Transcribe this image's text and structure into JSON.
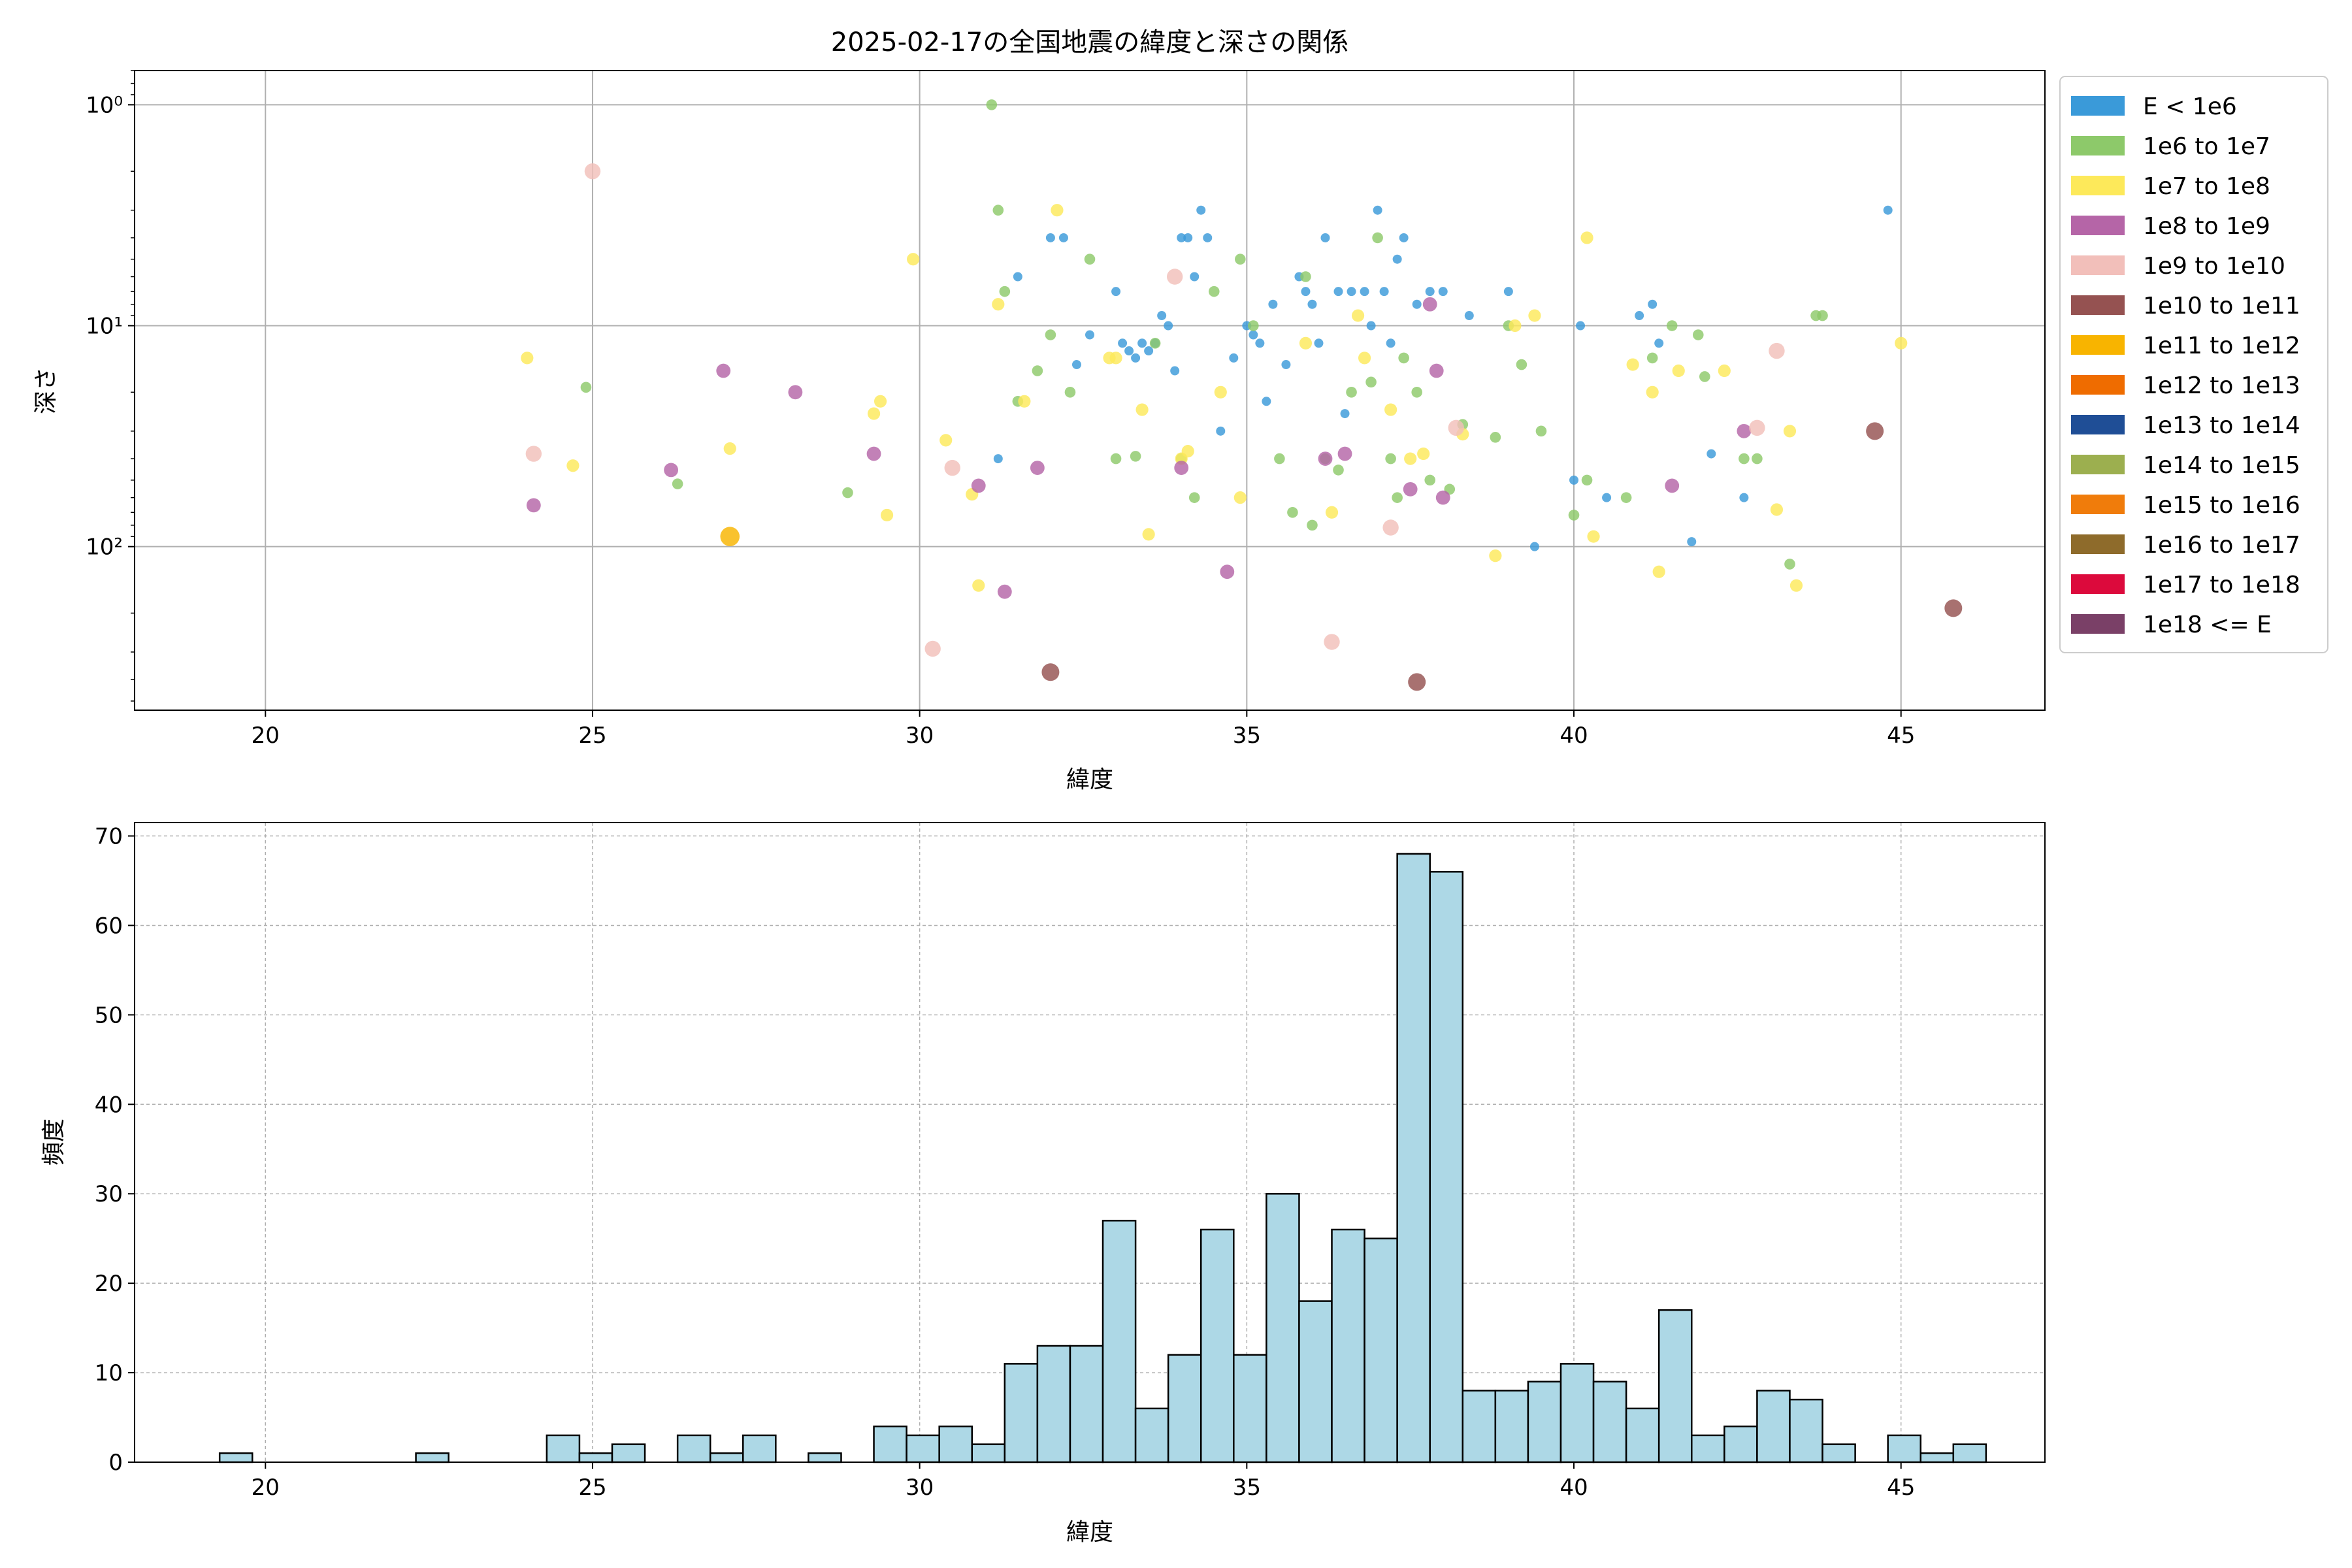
{
  "chart_data": [
    {
      "type": "scatter",
      "title": "2025-02-17の全国地震の緯度と深さの関係",
      "xlabel": "緯度",
      "ylabel": "深さ",
      "xlim": [
        18,
        47.2
      ],
      "ylim": [
        0.7,
        550
      ],
      "y_scale": "log",
      "y_inverted": true,
      "grid": true,
      "legend_position": "outside-right",
      "x_ticks": [
        20,
        25,
        30,
        35,
        40,
        45
      ],
      "y_ticks": [
        {
          "value": 1,
          "label": "10⁰"
        },
        {
          "value": 10,
          "label": "10¹"
        },
        {
          "value": 100,
          "label": "10²"
        }
      ],
      "legend": [
        {
          "label": "E < 1e6",
          "color": "#3a9ad9"
        },
        {
          "label": "1e6 to 1e7",
          "color": "#8dc96a"
        },
        {
          "label": "1e7 to 1e8",
          "color": "#fde95a"
        },
        {
          "label": "1e8 to 1e9",
          "color": "#b565a7"
        },
        {
          "label": "1e9 to 1e10",
          "color": "#f2bfba"
        },
        {
          "label": "1e10 to 1e11",
          "color": "#955251"
        },
        {
          "label": "1e11 to 1e12",
          "color": "#f8b400"
        },
        {
          "label": "1e12 to 1e13",
          "color": "#ef6c00"
        },
        {
          "label": "1e13 to 1e14",
          "color": "#1f4e96"
        },
        {
          "label": "1e14 to 1e15",
          "color": "#9caf4f"
        },
        {
          "label": "1e15 to 1e16",
          "color": "#f07c0b"
        },
        {
          "label": "1e16 to 1e17",
          "color": "#8e6b2b"
        },
        {
          "label": "1e17 to 1e18",
          "color": "#dc0a3c"
        },
        {
          "label": "1e18 <= E",
          "color": "#7a4067"
        }
      ],
      "series": [
        {
          "bin": 0,
          "points": [
            [
              32.0,
              4
            ],
            [
              32.2,
              4
            ],
            [
              33.0,
              7
            ],
            [
              33.1,
              12
            ],
            [
              33.2,
              13
            ],
            [
              33.3,
              14
            ],
            [
              33.4,
              12
            ],
            [
              33.5,
              13
            ],
            [
              33.6,
              12
            ],
            [
              33.8,
              10
            ],
            [
              34.0,
              4
            ],
            [
              34.1,
              4
            ],
            [
              34.2,
              6
            ],
            [
              34.4,
              4
            ],
            [
              34.6,
              30
            ],
            [
              35.0,
              10
            ],
            [
              35.1,
              11
            ],
            [
              35.2,
              12
            ],
            [
              35.4,
              8
            ],
            [
              35.6,
              15
            ],
            [
              35.8,
              6
            ],
            [
              36.0,
              8
            ],
            [
              36.2,
              4
            ],
            [
              36.4,
              7
            ],
            [
              36.6,
              7
            ],
            [
              36.8,
              7
            ],
            [
              37.0,
              3
            ],
            [
              37.2,
              12
            ],
            [
              37.4,
              4
            ],
            [
              37.6,
              8
            ],
            [
              37.8,
              7
            ],
            [
              38.0,
              7
            ],
            [
              38.4,
              9
            ],
            [
              39.0,
              7
            ],
            [
              39.4,
              100
            ],
            [
              40.0,
              50
            ],
            [
              40.1,
              10
            ],
            [
              40.5,
              60
            ],
            [
              41.0,
              9
            ],
            [
              41.2,
              8
            ],
            [
              41.3,
              12
            ],
            [
              41.8,
              95
            ],
            [
              42.1,
              38
            ],
            [
              42.6,
              60
            ],
            [
              44.8,
              3
            ],
            [
              31.2,
              40
            ],
            [
              31.5,
              6
            ],
            [
              32.4,
              15
            ],
            [
              32.6,
              11
            ],
            [
              33.9,
              16
            ],
            [
              34.8,
              14
            ],
            [
              35.3,
              22
            ],
            [
              36.1,
              12
            ],
            [
              36.9,
              10
            ],
            [
              37.3,
              5
            ],
            [
              37.1,
              7
            ],
            [
              36.5,
              25
            ],
            [
              35.9,
              7
            ],
            [
              34.3,
              3
            ],
            [
              33.7,
              9
            ]
          ]
        },
        {
          "bin": 1,
          "points": [
            [
              24.9,
              19
            ],
            [
              26.3,
              52
            ],
            [
              28.9,
              57
            ],
            [
              31.1,
              1
            ],
            [
              31.2,
              3
            ],
            [
              31.3,
              7
            ],
            [
              31.5,
              22
            ],
            [
              31.8,
              16
            ],
            [
              32.0,
              11
            ],
            [
              32.3,
              20
            ],
            [
              32.6,
              5
            ],
            [
              33.0,
              40
            ],
            [
              33.3,
              39
            ],
            [
              34.0,
              40
            ],
            [
              34.2,
              60
            ],
            [
              34.5,
              7
            ],
            [
              34.9,
              5
            ],
            [
              35.1,
              10
            ],
            [
              35.5,
              40
            ],
            [
              35.7,
              70
            ],
            [
              35.9,
              6
            ],
            [
              36.2,
              40
            ],
            [
              36.4,
              45
            ],
            [
              36.6,
              20
            ],
            [
              36.9,
              18
            ],
            [
              37.0,
              4
            ],
            [
              37.2,
              40
            ],
            [
              37.4,
              14
            ],
            [
              37.6,
              20
            ],
            [
              37.8,
              50
            ],
            [
              38.3,
              28
            ],
            [
              38.8,
              32
            ],
            [
              39.0,
              10
            ],
            [
              39.2,
              15
            ],
            [
              39.5,
              30
            ],
            [
              40.0,
              72
            ],
            [
              40.2,
              50
            ],
            [
              40.8,
              60
            ],
            [
              41.2,
              14
            ],
            [
              41.5,
              10
            ],
            [
              41.9,
              11
            ],
            [
              42.0,
              17
            ],
            [
              42.6,
              40
            ],
            [
              42.8,
              40
            ],
            [
              43.3,
              120
            ],
            [
              43.7,
              9
            ],
            [
              43.8,
              9
            ],
            [
              38.1,
              55
            ],
            [
              37.3,
              60
            ],
            [
              36.0,
              80
            ],
            [
              33.6,
              12
            ]
          ]
        },
        {
          "bin": 2,
          "points": [
            [
              24.0,
              14
            ],
            [
              24.7,
              43
            ],
            [
              27.1,
              36
            ],
            [
              29.3,
              25
            ],
            [
              29.4,
              22
            ],
            [
              29.5,
              72
            ],
            [
              29.9,
              5
            ],
            [
              30.4,
              33
            ],
            [
              30.8,
              58
            ],
            [
              30.9,
              150
            ],
            [
              31.2,
              8
            ],
            [
              31.6,
              22
            ],
            [
              32.1,
              3
            ],
            [
              33.0,
              14
            ],
            [
              33.4,
              24
            ],
            [
              33.5,
              88
            ],
            [
              34.1,
              37
            ],
            [
              34.6,
              20
            ],
            [
              34.9,
              60
            ],
            [
              35.9,
              12
            ],
            [
              36.3,
              70
            ],
            [
              36.8,
              14
            ],
            [
              37.2,
              24
            ],
            [
              37.7,
              38
            ],
            [
              38.3,
              31
            ],
            [
              38.8,
              110
            ],
            [
              39.1,
              10
            ],
            [
              39.4,
              9
            ],
            [
              40.2,
              4
            ],
            [
              40.3,
              90
            ],
            [
              40.9,
              15
            ],
            [
              41.2,
              20
            ],
            [
              41.3,
              130
            ],
            [
              41.6,
              16
            ],
            [
              42.3,
              16
            ],
            [
              43.1,
              68
            ],
            [
              43.3,
              30
            ],
            [
              43.4,
              150
            ],
            [
              45.0,
              12
            ],
            [
              36.7,
              9
            ],
            [
              37.5,
              40
            ],
            [
              34.0,
              40
            ],
            [
              32.9,
              14
            ]
          ]
        },
        {
          "bin": 3,
          "points": [
            [
              24.1,
              65
            ],
            [
              26.2,
              45
            ],
            [
              27.0,
              16
            ],
            [
              28.1,
              20
            ],
            [
              29.3,
              38
            ],
            [
              30.9,
              53
            ],
            [
              31.3,
              160
            ],
            [
              31.8,
              44
            ],
            [
              34.0,
              44
            ],
            [
              34.7,
              130
            ],
            [
              36.2,
              40
            ],
            [
              36.5,
              38
            ],
            [
              37.5,
              55
            ],
            [
              37.8,
              8
            ],
            [
              37.9,
              16
            ],
            [
              38.0,
              60
            ],
            [
              41.5,
              53
            ],
            [
              42.6,
              30
            ]
          ]
        },
        {
          "bin": 4,
          "points": [
            [
              24.1,
              38
            ],
            [
              25.0,
              2
            ],
            [
              30.5,
              44
            ],
            [
              30.2,
              290
            ],
            [
              33.9,
              6
            ],
            [
              36.3,
              270
            ],
            [
              37.2,
              82
            ],
            [
              38.2,
              29
            ],
            [
              42.8,
              29
            ],
            [
              43.1,
              13
            ]
          ]
        },
        {
          "bin": 5,
          "points": [
            [
              32.0,
              370
            ],
            [
              37.6,
              410
            ],
            [
              44.6,
              30
            ],
            [
              45.8,
              190
            ]
          ]
        },
        {
          "bin": 6,
          "points": [
            [
              27.1,
              90
            ]
          ]
        }
      ]
    },
    {
      "type": "bar",
      "title": "",
      "xlabel": "緯度",
      "ylabel": "頻度",
      "xlim": [
        18,
        47.2
      ],
      "ylim": [
        0,
        71.5
      ],
      "x_ticks": [
        20,
        25,
        30,
        35,
        40,
        45
      ],
      "y_ticks": [
        0,
        10,
        20,
        30,
        40,
        50,
        60,
        70
      ],
      "bar_color": "#add8e6",
      "edge_color": "#000000",
      "grid": true,
      "bin_start": 19.3,
      "bin_width": 0.5,
      "values": [
        1,
        0,
        0,
        0,
        0,
        0,
        1,
        0,
        0,
        0,
        3,
        1,
        2,
        0,
        3,
        1,
        3,
        0,
        1,
        0,
        4,
        3,
        4,
        2,
        11,
        13,
        13,
        27,
        6,
        12,
        26,
        12,
        30,
        18,
        26,
        25,
        68,
        66,
        8,
        8,
        9,
        11,
        9,
        6,
        17,
        3,
        4,
        8,
        7,
        2,
        0,
        3,
        1,
        2
      ]
    }
  ]
}
